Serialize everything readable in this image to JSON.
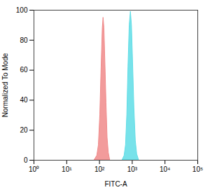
{
  "chart_data": {
    "type": "area",
    "xlabel": "FITC-A",
    "ylabel": "Normalized To Mode",
    "log": "x",
    "grid": false,
    "xlim": [
      1,
      100000
    ],
    "xticks": [
      {
        "value": 1,
        "label": "10⁰"
      },
      {
        "value": 10,
        "label": "10¹"
      },
      {
        "value": 100,
        "label": "10²"
      },
      {
        "value": 1000,
        "label": "10³"
      },
      {
        "value": 10000,
        "label": "10⁴"
      },
      {
        "value": 100000,
        "label": "10⁵"
      }
    ],
    "ylim": [
      0,
      100
    ],
    "yticks": [
      0,
      20,
      40,
      60,
      80,
      100
    ],
    "series": [
      {
        "color": "#f08a8a",
        "x": [
          70,
          85,
          95,
          105,
          115,
          125,
          132,
          140,
          150,
          162,
          175,
          190,
          210
        ],
        "values": [
          0,
          3,
          10,
          30,
          62,
          88,
          95,
          88,
          65,
          38,
          15,
          5,
          0
        ]
      },
      {
        "color": "#5fdde6",
        "x": [
          500,
          580,
          640,
          700,
          760,
          830,
          900,
          970,
          1050,
          1150,
          1270,
          1400,
          1600
        ],
        "values": [
          0,
          3,
          10,
          30,
          62,
          90,
          99,
          90,
          65,
          35,
          13,
          4,
          0
        ]
      }
    ]
  }
}
